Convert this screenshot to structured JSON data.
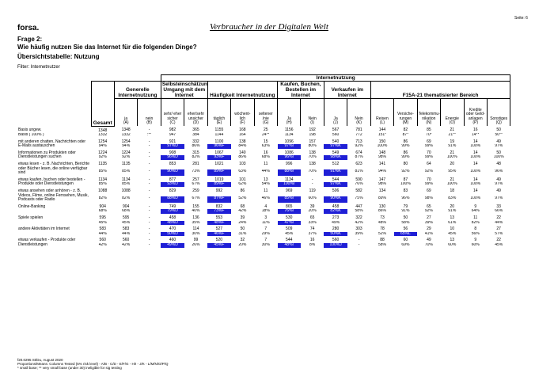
{
  "header": {
    "brand": "forsa.",
    "title": "Verbraucher in der Digitalen Welt",
    "page": "Seite: 6",
    "question_no": "Frage 2:",
    "question": "Wie häufig nutzen Sie das Internet für die folgenden Dinge?",
    "subtitle": "Übersichtstabelle: Nutzung",
    "filter": "Filter: Internetnutzer"
  },
  "table": {
    "super_header": "Internetnutzung",
    "total_header": "Gesamt",
    "groups": [
      {
        "title": "Generelle Internetnutzung",
        "columns": [
          {
            "label": "ja",
            "letter": "(A)"
          },
          {
            "label": "nein",
            "letter": "(B)"
          }
        ]
      },
      {
        "title": "Selbsteinschätzung Umgang mit dem Internet",
        "columns": [
          {
            "label": "sehr/ eher sicher",
            "letter": "(C)"
          },
          {
            "label": "eher/sehr unsicher",
            "letter": "(D)"
          }
        ]
      },
      {
        "title": "Häufigkeit Internetnutzung",
        "columns": [
          {
            "label": "täglich",
            "letter": "(E)"
          },
          {
            "label": "wöchent- lich",
            "letter": "(F)"
          },
          {
            "label": "seltener /nie",
            "letter": "(G)"
          }
        ]
      },
      {
        "title": "Kaufen, Buchen, Bestellen im Internet",
        "columns": [
          {
            "label": "Ja",
            "letter": "(H)"
          },
          {
            "label": "Nein",
            "letter": "(I)"
          }
        ]
      },
      {
        "title": "Verkaufen im Internet",
        "columns": [
          {
            "label": "Ja",
            "letter": "(J)"
          },
          {
            "label": "Nein",
            "letter": "(K)"
          }
        ]
      },
      {
        "title": "F15A-21 thematisierter Bereich",
        "columns": [
          {
            "label": "Reisen",
            "letter": "(L)"
          },
          {
            "label": "Versiche- rungen",
            "letter": "(M)"
          },
          {
            "label": "Telekommu- nikation",
            "letter": "(N)"
          },
          {
            "label": "Energie",
            "letter": "(O)"
          },
          {
            "label": "Kredite oder Geld- anlagen",
            "letter": "(P)"
          },
          {
            "label": "Sonstiges",
            "letter": "(Q)"
          }
        ]
      }
    ],
    "basis": [
      {
        "label": "Basis ungew.",
        "values": [
          "1348",
          "1348",
          "-",
          "982",
          "365",
          "1155",
          "168",
          "25",
          "1156",
          "192",
          "567",
          "781",
          "144",
          "82",
          "85",
          "21",
          "16",
          "50"
        ]
      },
      {
        "label": "Basis ( 100% )",
        "values": [
          "1332",
          "1332",
          ":**",
          "947",
          "384",
          "1144",
          "164",
          "24**",
          "1134",
          "198",
          "560",
          "772",
          "151*",
          "87*",
          "70*",
          "21**",
          "14**",
          "50**"
        ]
      }
    ],
    "rows": [
      {
        "label": "mit anderen chatten, Nachrichten oder E-Mails austauschen",
        "counts": [
          "1254",
          "1254",
          "-",
          "921",
          "332",
          "1100",
          "138",
          "15",
          "1096",
          "157",
          "540",
          "713",
          "150",
          "86",
          "69",
          "19",
          "14",
          "49"
        ],
        "percents": [
          "94%",
          "94%",
          "-",
          "97%D",
          "86%",
          "96%F",
          "84%",
          "63%",
          "97%I",
          "80%",
          "97%K",
          "92%",
          "100%",
          "99%",
          "99%",
          "91%",
          "100%",
          "97%"
        ]
      },
      {
        "label": "Informationen zu Produkten oder Dienstleistungen suchen",
        "counts": [
          "1224",
          "1224",
          "-",
          "908",
          "315",
          "1067",
          "140",
          "16",
          "1086",
          "138",
          "549",
          "674",
          "148",
          "86",
          "70",
          "21",
          "14",
          "50"
        ],
        "percents": [
          "92%",
          "92%",
          "-",
          "96%D",
          "82%",
          "93%F",
          "86%",
          "68%",
          "96%I",
          "70%",
          "98%K",
          "87%",
          "98%",
          "99%",
          "99%",
          "100%",
          "100%",
          "100%"
        ]
      },
      {
        "label": "etwas lesen - z. B. Nachrichten, Berichte oder Bücher lesen, die online verfügbar sind",
        "counts": [
          "1135",
          "1135",
          "-",
          "853",
          "281",
          "1021",
          "103",
          "11",
          "996",
          "138",
          "512",
          "623",
          "141",
          "80",
          "64",
          "20",
          "14",
          "48"
        ],
        "percents": [
          "85%",
          "85%",
          "-",
          "90%D",
          "73%",
          "89%F",
          "63%",
          "44%",
          "88%I",
          "70%",
          "91%K",
          "81%",
          "94%",
          "92%",
          "92%",
          "95%",
          "100%",
          "96%"
        ]
      },
      {
        "label": "etwas kaufen, buchen oder bestellen - Produkte oder Dienstleistungen",
        "counts": [
          "1134",
          "1134",
          "-",
          "877",
          "257",
          "1019",
          "101",
          "13",
          "1134",
          "-",
          "544",
          "590",
          "147",
          "87",
          "70",
          "21",
          "14",
          "49"
        ],
        "percents": [
          "85%",
          "85%",
          "-",
          "93%D",
          "67%",
          "89%F",
          "62%",
          "54%",
          "100%I",
          "-",
          "97%K",
          "76%",
          "98%",
          "100%",
          "99%",
          "100%",
          "100%",
          "97%"
        ]
      },
      {
        "label": "etwas ansehen oder anhören - z. B. Videos, Filme, online Fernsehen, Musik, Podcasts oder Radio",
        "counts": [
          "1088",
          "1088",
          "-",
          "829",
          "259",
          "992",
          "86",
          "11",
          "969",
          "119",
          "506",
          "582",
          "134",
          "83",
          "69",
          "18",
          "14",
          "49"
        ],
        "percents": [
          "82%",
          "82%",
          "-",
          "88%D",
          "67%",
          "87%F",
          "52%",
          "46%",
          "85%I",
          "60%",
          "90%K",
          "75%",
          "89%",
          "96%",
          "98%",
          "83%",
          "100%",
          "97%"
        ]
      },
      {
        "label": "Online-Banking",
        "counts": [
          "904",
          "904",
          "-",
          "749",
          "155",
          "832",
          "68",
          "4",
          "865",
          "39",
          "458",
          "447",
          "130",
          "79",
          "65",
          "20",
          "9",
          "33"
        ],
        "percents": [
          "68%",
          "68%",
          "-",
          "79%D",
          "40%",
          "73%F",
          "42%",
          "18%",
          "76%I",
          "20%",
          "82%K",
          "58%",
          "86%",
          "91%",
          "92%",
          "91%",
          "64%",
          "66%"
        ]
      },
      {
        "label": "Spiele spielen",
        "counts": [
          "595",
          "595",
          "-",
          "458",
          "136",
          "553",
          "39",
          "3",
          "530",
          "65",
          "273",
          "322",
          "73",
          "50",
          "27",
          "13",
          "11",
          "22"
        ],
        "percents": [
          "45%",
          "45%",
          "-",
          "48%D",
          "35%",
          "48%F",
          "24%",
          "11%",
          "47%I",
          "33%",
          "49%",
          "42%",
          "48%",
          "58%",
          "39%",
          "61%",
          "82%",
          "44%"
        ]
      },
      {
        "label": "andere Aktivitäten im Internet",
        "counts": [
          "583",
          "583",
          "-",
          "470",
          "114",
          "527",
          "50",
          "7",
          "509",
          "74",
          "280",
          "303",
          "78",
          "56",
          "29",
          "10",
          "8",
          "27"
        ],
        "percents": [
          "44%",
          "44%",
          "-",
          "50%D",
          "30%",
          "46%F",
          "31%",
          "29%",
          "45%",
          "37%",
          "50%K",
          "39%",
          "52%",
          "65%L",
          "41%",
          "45%",
          "56%",
          "57%"
        ]
      },
      {
        "label": "etwas verkaufen - Produkte oder Dienstleistungen",
        "counts": [
          "560",
          "560",
          "-",
          "460",
          "99",
          "520",
          "32",
          "7",
          "544",
          "16",
          "560",
          "-",
          "88",
          "60",
          "49",
          "13",
          "9",
          "22"
        ],
        "percents": [
          "42%",
          "42%",
          "-",
          "49%D",
          "26%",
          "45%F",
          "20%",
          "30%",
          "48%I",
          "8%",
          "100%J",
          "-",
          "58%",
          "69%",
          "70%",
          "60%",
          "60%",
          "45%"
        ]
      }
    ]
  },
  "footer": [
    "f20.0295 St/Du, August 2020",
    "Proportions/Means: Columns Tested (5% risk level) - A/B - C/D - E/F/G - H/I - J/K - L/M/N/O/P/Q",
    "* small base; ** very small base (under 30) ineligible for sig testing"
  ]
}
